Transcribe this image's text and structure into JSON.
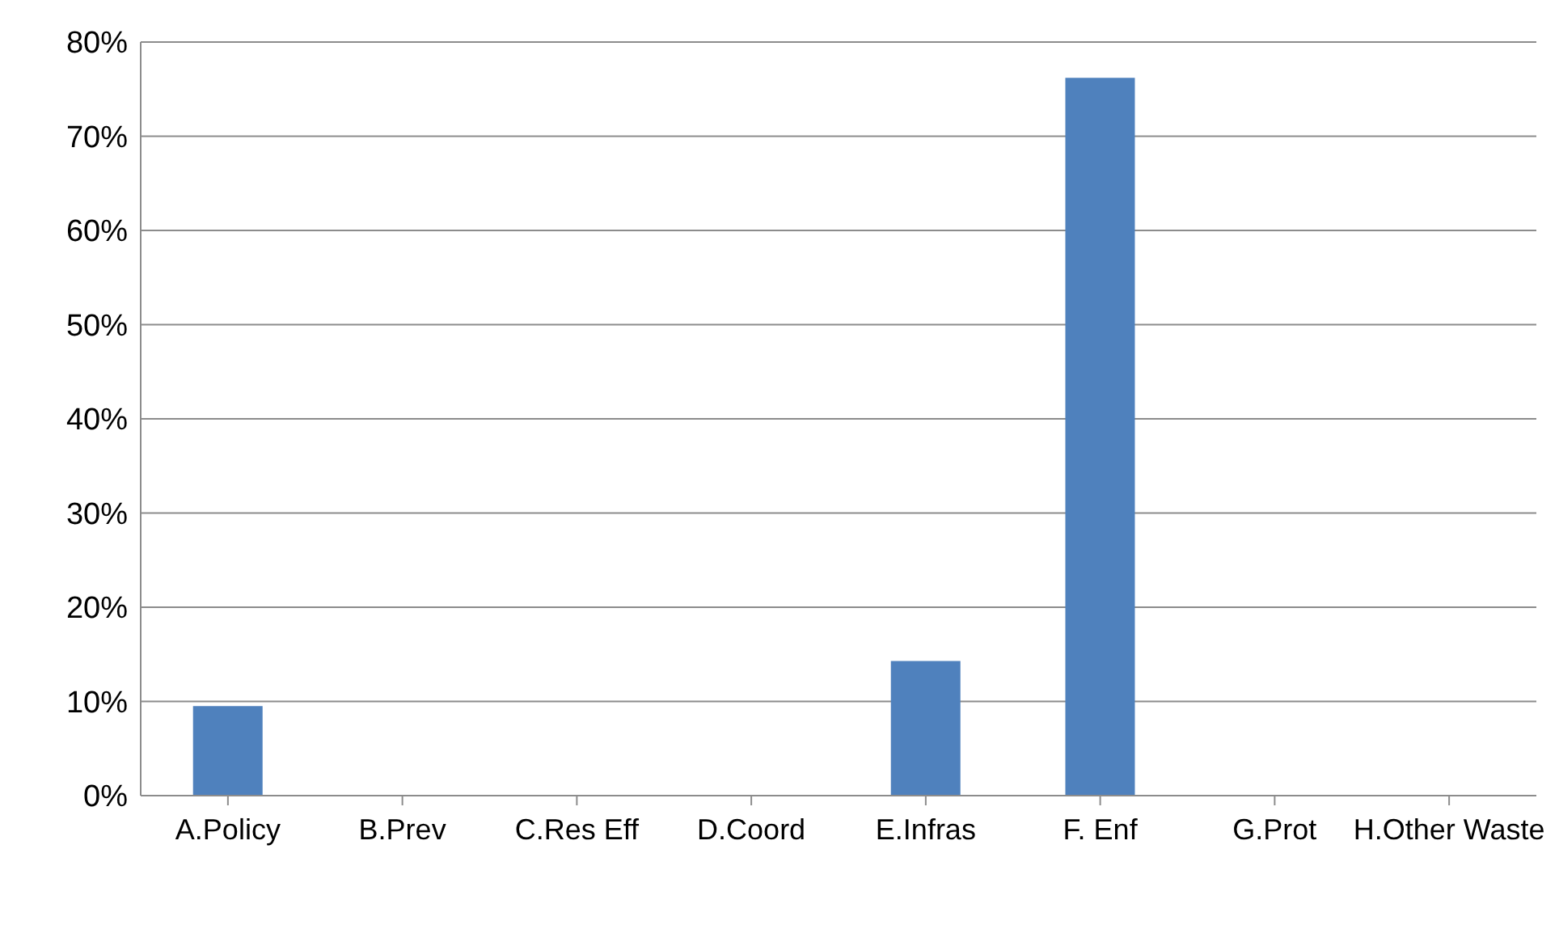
{
  "chart_data": {
    "type": "bar",
    "categories": [
      "A.Policy",
      "B.Prev",
      "C.Res Eff",
      "D.Coord",
      "E.Infras",
      "F. Enf",
      "G.Prot",
      "H.Other Waste"
    ],
    "values": [
      9.5,
      0,
      0,
      0,
      14.3,
      76.2,
      0,
      0
    ],
    "color": "#4f81bd",
    "ylim": [
      0,
      80
    ],
    "yticks": [
      {
        "value": 0,
        "label": "0%"
      },
      {
        "value": 10,
        "label": "10%"
      },
      {
        "value": 20,
        "label": "20%"
      },
      {
        "value": 30,
        "label": "30%"
      },
      {
        "value": 40,
        "label": "40%"
      },
      {
        "value": 50,
        "label": "50%"
      },
      {
        "value": 60,
        "label": "60%"
      },
      {
        "value": 70,
        "label": "70%"
      },
      {
        "value": 80,
        "label": "80%"
      }
    ],
    "grid": "y",
    "legend": false
  }
}
